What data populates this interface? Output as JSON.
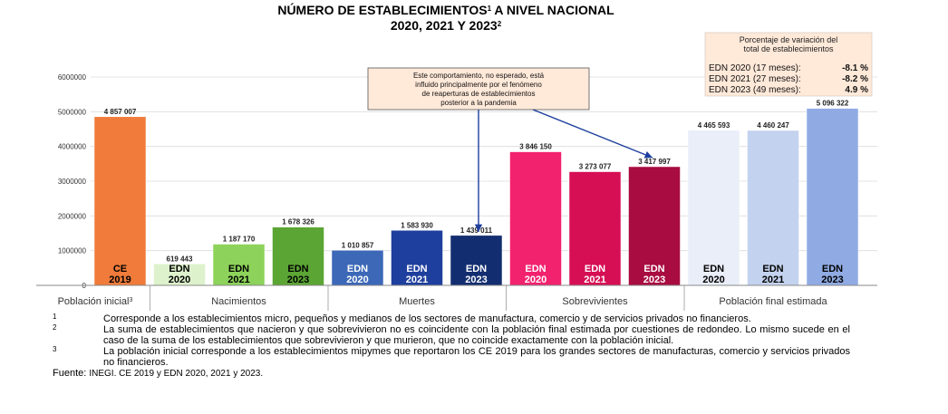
{
  "chart_data": {
    "type": "bar",
    "title": {
      "line1": "NÚMERO DE ESTABLECIMIENTOS",
      "line1_sup": "1",
      "line1_tail": " A NIVEL NACIONAL",
      "line2": "2020, 2021 Y 2023",
      "line2_sup": "2"
    },
    "ylim": [
      0,
      6000000
    ],
    "yticks": [
      "0",
      "1000000",
      "2000000",
      "3000000",
      "4000000",
      "5000000",
      "6000000"
    ],
    "bars": [
      {
        "label": "CE",
        "sublabel": "2019",
        "value": 4857007,
        "value_label": "4 857 007",
        "color": "#F07B3A",
        "text_color": "#000000"
      },
      {
        "label": "EDN",
        "sublabel": "2020",
        "value": 619443,
        "value_label": "619 443",
        "color": "#DDF2CC",
        "text_color": "#000000"
      },
      {
        "label": "EDN",
        "sublabel": "2021",
        "value": 1187170,
        "value_label": "1 187 170",
        "color": "#8DD35B",
        "text_color": "#000000"
      },
      {
        "label": "EDN",
        "sublabel": "2023",
        "value": 1678326,
        "value_label": "1 678 326",
        "color": "#5BA534",
        "text_color": "#000000"
      },
      {
        "label": "EDN",
        "sublabel": "2020",
        "value": 1010857,
        "value_label": "1 010 857",
        "color": "#3D68B8",
        "text_color": "#ffffff"
      },
      {
        "label": "EDN",
        "sublabel": "2021",
        "value": 1583930,
        "value_label": "1 583 930",
        "color": "#1E3F9E",
        "text_color": "#ffffff"
      },
      {
        "label": "EDN",
        "sublabel": "2023",
        "value": 1439011,
        "value_label": "1 439 011",
        "color": "#132E70",
        "text_color": "#ffffff"
      },
      {
        "label": "EDN",
        "sublabel": "2020",
        "value": 3846150,
        "value_label": "3 846 150",
        "color": "#F2226E",
        "text_color": "#ffffff"
      },
      {
        "label": "EDN",
        "sublabel": "2021",
        "value": 3273077,
        "value_label": "3 273 077",
        "color": "#D60F54",
        "text_color": "#ffffff"
      },
      {
        "label": "EDN",
        "sublabel": "2023",
        "value": 3417997,
        "value_label": "3 417 997",
        "color": "#A80C40",
        "text_color": "#ffffff"
      },
      {
        "label": "EDN",
        "sublabel": "2020",
        "value": 4465593,
        "value_label": "4 465 593",
        "color": "#E9EEF9",
        "text_color": "#000000"
      },
      {
        "label": "EDN",
        "sublabel": "2021",
        "value": 4460247,
        "value_label": "4 460 247",
        "color": "#C3D2EE",
        "text_color": "#000000"
      },
      {
        "label": "EDN",
        "sublabel": "2023",
        "value": 5096322,
        "value_label": "5 096 322",
        "color": "#90ABE3",
        "text_color": "#000000"
      }
    ],
    "groups": [
      {
        "label": "Población inicial",
        "sup": "3",
        "span": [
          0,
          0
        ]
      },
      {
        "label": "Nacimientos",
        "span": [
          1,
          3
        ]
      },
      {
        "label": "Muertes",
        "span": [
          4,
          6
        ]
      },
      {
        "label": "Sobrevivientes",
        "span": [
          7,
          9
        ]
      },
      {
        "label": "Población final estimada",
        "span": [
          10,
          12
        ]
      }
    ],
    "annotation": {
      "lines": [
        "Este comportamiento, no esperado, está",
        "influido principalmente por el fenómeno",
        "de reaperturas de establecimientos",
        "posterior a la pandemia"
      ],
      "bg": "#FFE9D9",
      "targets": [
        6,
        9
      ]
    },
    "pct_box": {
      "title_lines": [
        "Porcentaje de variación del",
        "total de establecimientos"
      ],
      "rows": [
        {
          "label": "EDN 2020 (17 meses):",
          "value": "-8.1 %"
        },
        {
          "label": "EDN 2021 (27 meses):",
          "value": "-8.2 %"
        },
        {
          "label": "EDN 2023 (49 meses):",
          "value": "4.9 %"
        }
      ],
      "bg": "#FFE9D9"
    }
  },
  "notes": [
    {
      "mark": "1",
      "text": "Corresponde a los establecimientos micro, pequeños y medianos de los sectores de manufactura, comercio y de servicios privados no financieros."
    },
    {
      "mark": "2",
      "text": "La suma de establecimientos que nacieron y que sobrevivieron no es coincidente con la población final estimada por cuestiones de redondeo. Lo mismo sucede en el caso de la suma de los establecimientos que sobrevivieron y que murieron, que no coincide exactamente con la población inicial."
    },
    {
      "mark": "3",
      "text": "La población inicial corresponde a los establecimientos mipymes que reportaron los CE 2019 para los grandes sectores de manufacturas, comercio y servicios privados no financieros."
    }
  ],
  "source": {
    "label": "Fuente: ",
    "text": "INEGI. CE 2019 y EDN 2020, 2021 y 2023."
  }
}
